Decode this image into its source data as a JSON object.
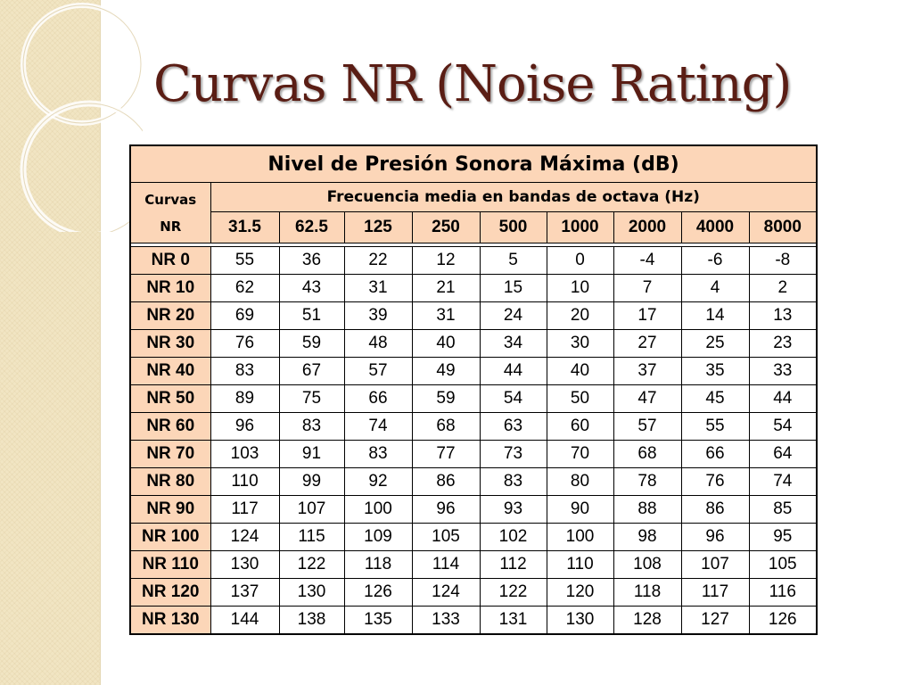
{
  "slide": {
    "title": "Curvas NR (Noise Rating)"
  },
  "table": {
    "caption": "Nivel de Presión Sonora Máxima (dB)",
    "subcaption": "Frecuencia media en bandas de octava (Hz)",
    "row_header_line1": "Curvas",
    "row_header_line2": "NR",
    "frequencies": [
      "31.5",
      "62.5",
      "125",
      "250",
      "500",
      "1000",
      "2000",
      "4000",
      "8000"
    ],
    "rows": [
      {
        "label": "NR 0",
        "values": [
          "55",
          "36",
          "22",
          "12",
          "5",
          "0",
          "-4",
          "-6",
          "-8"
        ]
      },
      {
        "label": "NR 10",
        "values": [
          "62",
          "43",
          "31",
          "21",
          "15",
          "10",
          "7",
          "4",
          "2"
        ]
      },
      {
        "label": "NR 20",
        "values": [
          "69",
          "51",
          "39",
          "31",
          "24",
          "20",
          "17",
          "14",
          "13"
        ]
      },
      {
        "label": "NR 30",
        "values": [
          "76",
          "59",
          "48",
          "40",
          "34",
          "30",
          "27",
          "25",
          "23"
        ]
      },
      {
        "label": "NR 40",
        "values": [
          "83",
          "67",
          "57",
          "49",
          "44",
          "40",
          "37",
          "35",
          "33"
        ]
      },
      {
        "label": "NR 50",
        "values": [
          "89",
          "75",
          "66",
          "59",
          "54",
          "50",
          "47",
          "45",
          "44"
        ]
      },
      {
        "label": "NR 60",
        "values": [
          "96",
          "83",
          "74",
          "68",
          "63",
          "60",
          "57",
          "55",
          "54"
        ]
      },
      {
        "label": "NR 70",
        "values": [
          "103",
          "91",
          "83",
          "77",
          "73",
          "70",
          "68",
          "66",
          "64"
        ]
      },
      {
        "label": "NR 80",
        "values": [
          "110",
          "99",
          "92",
          "86",
          "83",
          "80",
          "78",
          "76",
          "74"
        ]
      },
      {
        "label": "NR 90",
        "values": [
          "117",
          "107",
          "100",
          "96",
          "93",
          "90",
          "88",
          "86",
          "85"
        ]
      },
      {
        "label": "NR 100",
        "values": [
          "124",
          "115",
          "109",
          "105",
          "102",
          "100",
          "98",
          "96",
          "95"
        ]
      },
      {
        "label": "NR 110",
        "values": [
          "130",
          "122",
          "118",
          "114",
          "112",
          "110",
          "108",
          "107",
          "105"
        ]
      },
      {
        "label": "NR 120",
        "values": [
          "137",
          "130",
          "126",
          "124",
          "122",
          "120",
          "118",
          "117",
          "116"
        ]
      },
      {
        "label": "NR 130",
        "values": [
          "144",
          "138",
          "135",
          "133",
          "131",
          "130",
          "128",
          "127",
          "126"
        ]
      }
    ]
  },
  "colors": {
    "title": "#5a1d14",
    "header_fill": "#fcd6b8",
    "side_panel": "#f1e5c3"
  },
  "chart_data": {
    "type": "table",
    "title": "Nivel de Presión Sonora Máxima (dB)",
    "columns": [
      "31.5",
      "62.5",
      "125",
      "250",
      "500",
      "1000",
      "2000",
      "4000",
      "8000"
    ],
    "column_group_label": "Frecuencia media en bandas de octava (Hz)",
    "row_group_label": "Curvas NR",
    "rows": [
      {
        "name": "NR 0",
        "values": [
          55,
          36,
          22,
          12,
          5,
          0,
          -4,
          -6,
          -8
        ]
      },
      {
        "name": "NR 10",
        "values": [
          62,
          43,
          31,
          21,
          15,
          10,
          7,
          4,
          2
        ]
      },
      {
        "name": "NR 20",
        "values": [
          69,
          51,
          39,
          31,
          24,
          20,
          17,
          14,
          13
        ]
      },
      {
        "name": "NR 30",
        "values": [
          76,
          59,
          48,
          40,
          34,
          30,
          27,
          25,
          23
        ]
      },
      {
        "name": "NR 40",
        "values": [
          83,
          67,
          57,
          49,
          44,
          40,
          37,
          35,
          33
        ]
      },
      {
        "name": "NR 50",
        "values": [
          89,
          75,
          66,
          59,
          54,
          50,
          47,
          45,
          44
        ]
      },
      {
        "name": "NR 60",
        "values": [
          96,
          83,
          74,
          68,
          63,
          60,
          57,
          55,
          54
        ]
      },
      {
        "name": "NR 70",
        "values": [
          103,
          91,
          83,
          77,
          73,
          70,
          68,
          66,
          64
        ]
      },
      {
        "name": "NR 80",
        "values": [
          110,
          99,
          92,
          86,
          83,
          80,
          78,
          76,
          74
        ]
      },
      {
        "name": "NR 90",
        "values": [
          117,
          107,
          100,
          96,
          93,
          90,
          88,
          86,
          85
        ]
      },
      {
        "name": "NR 100",
        "values": [
          124,
          115,
          109,
          105,
          102,
          100,
          98,
          96,
          95
        ]
      },
      {
        "name": "NR 110",
        "values": [
          130,
          122,
          118,
          114,
          112,
          110,
          108,
          107,
          105
        ]
      },
      {
        "name": "NR 120",
        "values": [
          137,
          130,
          126,
          124,
          122,
          120,
          118,
          117,
          116
        ]
      },
      {
        "name": "NR 130",
        "values": [
          144,
          138,
          135,
          133,
          131,
          130,
          128,
          127,
          126
        ]
      }
    ]
  }
}
